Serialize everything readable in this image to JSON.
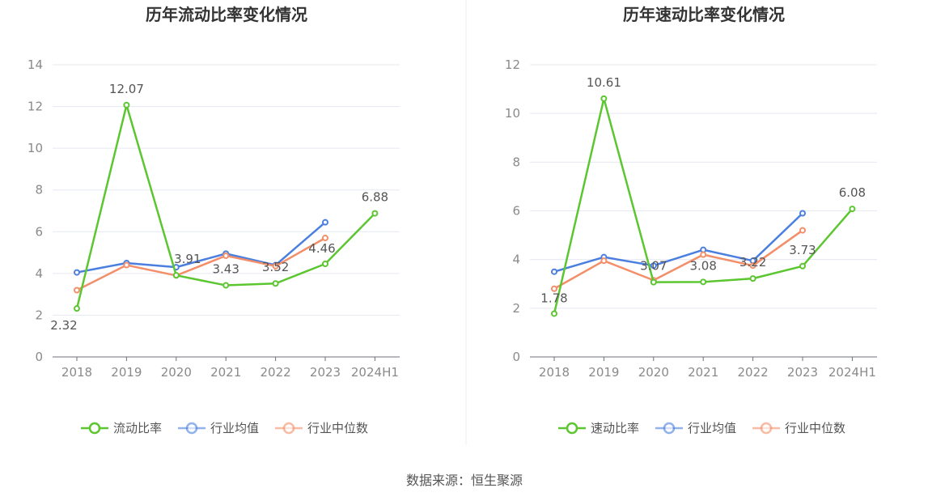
{
  "colors": {
    "primary": "#5cc631",
    "industry_avg": "#4a7fe0",
    "industry_median": "#f48e68",
    "grid": "#e6e8f2",
    "axis": "#6e7079",
    "divider": "#eeeeee"
  },
  "source_text": "数据来源：恒生聚源",
  "chart_data": [
    {
      "type": "line",
      "title": "历年流动比率变化情况",
      "categories": [
        "2018",
        "2019",
        "2020",
        "2021",
        "2022",
        "2023",
        "2024H1"
      ],
      "ylim": [
        0,
        14
      ],
      "yticks": [
        0,
        2,
        4,
        6,
        8,
        10,
        12,
        14
      ],
      "grid": true,
      "legend_position": "bottom",
      "series": [
        {
          "name": "流动比率",
          "color": "#5cc631",
          "show_labels": true,
          "values": [
            2.32,
            12.07,
            3.91,
            3.43,
            3.52,
            4.46,
            6.88
          ]
        },
        {
          "name": "行业均值",
          "color": "#4a7fe0",
          "show_labels": false,
          "values": [
            4.05,
            4.5,
            4.3,
            4.95,
            4.4,
            6.45,
            null
          ]
        },
        {
          "name": "行业中位数",
          "color": "#f48e68",
          "show_labels": false,
          "values": [
            3.2,
            4.4,
            3.9,
            4.85,
            4.35,
            5.7,
            null
          ]
        }
      ]
    },
    {
      "type": "line",
      "title": "历年速动比率变化情况",
      "categories": [
        "2018",
        "2019",
        "2020",
        "2021",
        "2022",
        "2023",
        "2024H1"
      ],
      "ylim": [
        0,
        12
      ],
      "yticks": [
        0,
        2,
        4,
        6,
        8,
        10,
        12
      ],
      "grid": true,
      "legend_position": "bottom",
      "series": [
        {
          "name": "速动比率",
          "color": "#5cc631",
          "show_labels": true,
          "values": [
            1.78,
            10.61,
            3.07,
            3.08,
            3.22,
            3.73,
            6.08
          ]
        },
        {
          "name": "行业均值",
          "color": "#4a7fe0",
          "show_labels": false,
          "values": [
            3.5,
            4.1,
            3.75,
            4.4,
            3.95,
            5.9,
            null
          ]
        },
        {
          "name": "行业中位数",
          "color": "#f48e68",
          "show_labels": false,
          "values": [
            2.8,
            3.95,
            3.15,
            4.2,
            3.75,
            5.2,
            null
          ]
        }
      ]
    }
  ]
}
